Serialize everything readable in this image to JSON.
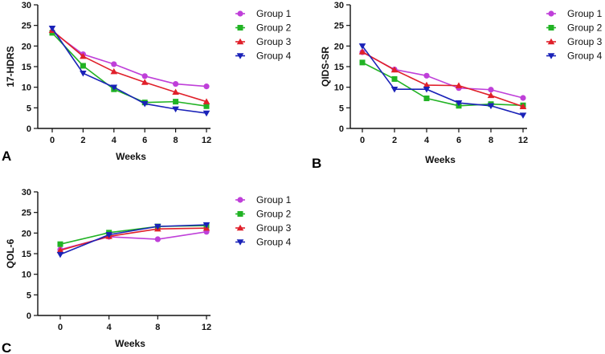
{
  "colors": {
    "Group 1": "#bf3fd9",
    "Group 2": "#21b324",
    "Group 3": "#e0202a",
    "Group 4": "#1a22b8",
    "axis": "#111111"
  },
  "markers": {
    "Group 1": "circle",
    "Group 2": "square",
    "Group 3": "triangle-up",
    "Group 4": "triangle-down"
  },
  "chart_data": [
    {
      "type": "line",
      "panel": "A",
      "title": "",
      "xlabel": "Weeks",
      "ylabel": "17-HDRS",
      "categories": [
        "0",
        "2",
        "4",
        "6",
        "8",
        "12"
      ],
      "ylim": [
        0,
        30
      ],
      "yticks": [
        0,
        5,
        10,
        15,
        20,
        25,
        30
      ],
      "grid": false,
      "legend_position": "right",
      "series": [
        {
          "name": "Group 1",
          "values": [
            23.5,
            18.0,
            15.6,
            12.7,
            10.8,
            10.2
          ]
        },
        {
          "name": "Group 2",
          "values": [
            23.2,
            15.2,
            9.5,
            6.3,
            6.5,
            5.4
          ]
        },
        {
          "name": "Group 3",
          "values": [
            23.8,
            17.5,
            13.8,
            11.2,
            8.8,
            6.5
          ]
        },
        {
          "name": "Group 4",
          "values": [
            24.3,
            13.4,
            10.0,
            6.0,
            4.7,
            3.7
          ]
        }
      ]
    },
    {
      "type": "line",
      "panel": "B",
      "title": "",
      "xlabel": "Weeks",
      "ylabel": "QIDS-SR",
      "categories": [
        "0",
        "2",
        "4",
        "6",
        "8",
        "12"
      ],
      "ylim": [
        0,
        30
      ],
      "yticks": [
        0,
        5,
        10,
        15,
        20,
        25,
        30
      ],
      "grid": false,
      "legend_position": "right",
      "series": [
        {
          "name": "Group 1",
          "values": [
            18.5,
            14.3,
            12.8,
            9.8,
            9.4,
            7.4
          ]
        },
        {
          "name": "Group 2",
          "values": [
            16.0,
            12.0,
            7.3,
            5.5,
            5.9,
            5.6
          ]
        },
        {
          "name": "Group 3",
          "values": [
            18.6,
            14.2,
            10.5,
            10.4,
            8.0,
            5.3
          ]
        },
        {
          "name": "Group 4",
          "values": [
            20.0,
            9.5,
            9.5,
            6.2,
            5.5,
            3.2
          ]
        }
      ]
    },
    {
      "type": "line",
      "panel": "C",
      "title": "",
      "xlabel": "Weeks",
      "ylabel": "QOL-6",
      "categories": [
        "0",
        "4",
        "8",
        "12"
      ],
      "ylim": [
        0,
        30
      ],
      "yticks": [
        0,
        5,
        10,
        15,
        20,
        25,
        30
      ],
      "grid": false,
      "legend_position": "right",
      "series": [
        {
          "name": "Group 1",
          "values": [
            16.0,
            19.1,
            18.5,
            20.3
          ]
        },
        {
          "name": "Group 2",
          "values": [
            17.3,
            20.1,
            21.6,
            21.8
          ]
        },
        {
          "name": "Group 3",
          "values": [
            15.8,
            19.2,
            21.0,
            21.2
          ]
        },
        {
          "name": "Group 4",
          "values": [
            14.8,
            19.6,
            21.6,
            22.0
          ]
        }
      ]
    }
  ]
}
